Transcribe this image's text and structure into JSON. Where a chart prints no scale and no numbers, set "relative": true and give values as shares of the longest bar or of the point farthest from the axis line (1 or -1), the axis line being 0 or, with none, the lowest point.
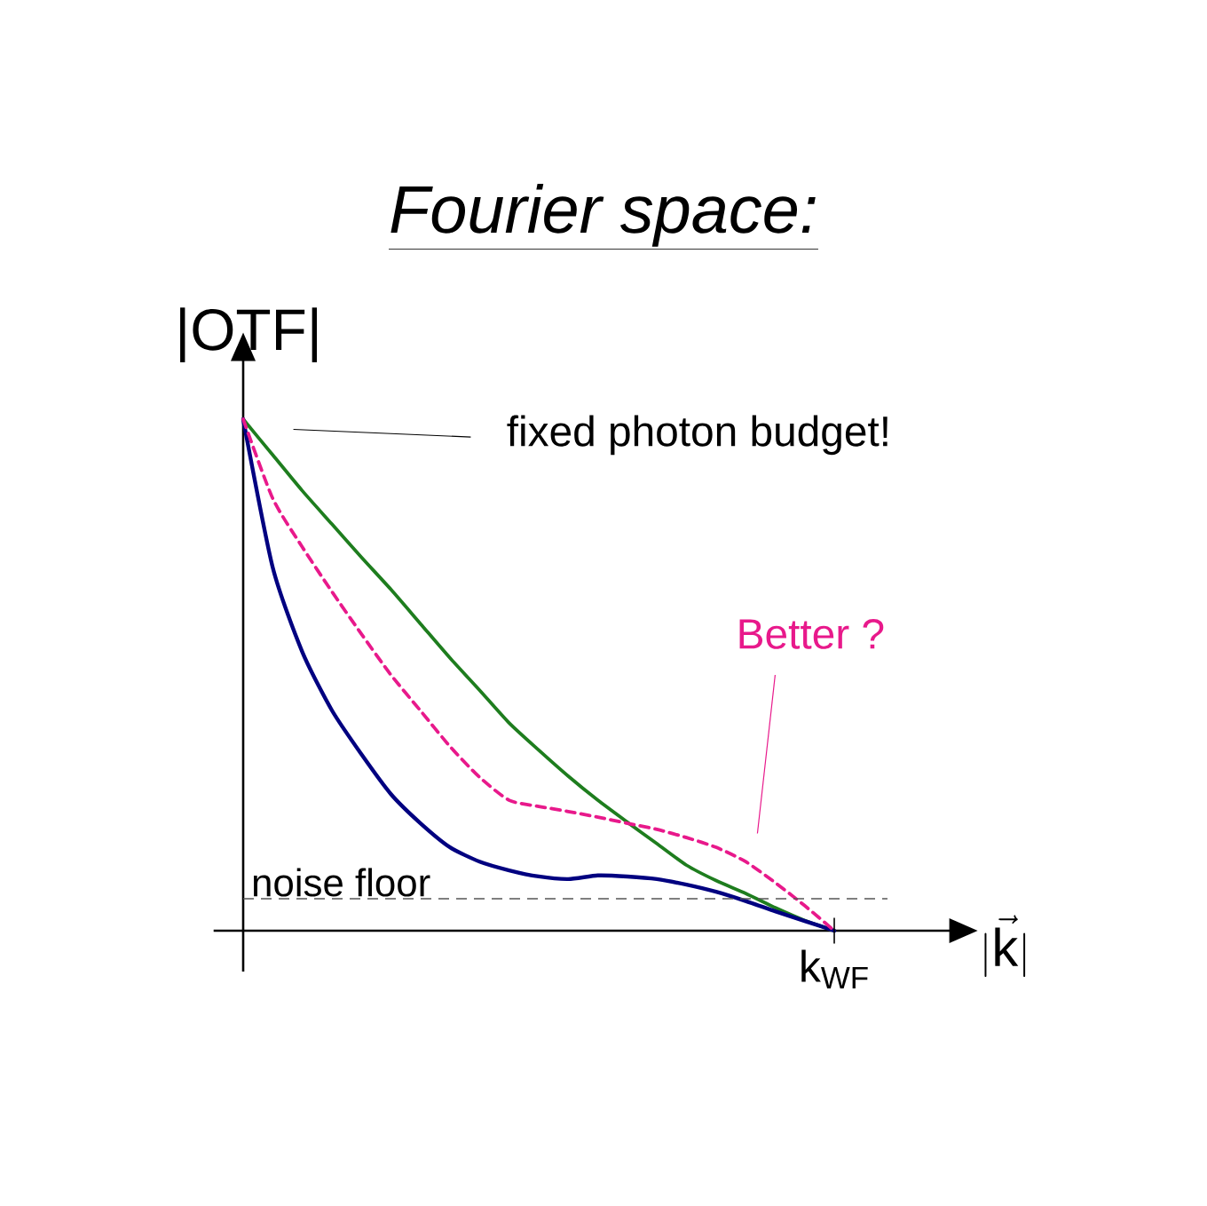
{
  "chart_data": {
    "type": "line",
    "title": "Fourier space:",
    "ylabel": "|OTF|",
    "relative": true,
    "marker": "none",
    "categories": [
      null,
      null,
      null,
      null,
      null,
      null,
      null,
      null,
      null,
      null,
      null,
      null,
      null,
      null,
      null,
      null,
      null,
      null,
      null,
      null,
      null
    ],
    "series": [
      {
        "color": "#1e7d1e",
        "line_style": "solid",
        "values": [
          1,
          0.93,
          0.86,
          0.795,
          0.73,
          0.667,
          0.6,
          0.533,
          0.47,
          0.406,
          0.353,
          0.302,
          0.255,
          0.212,
          0.17,
          0.128,
          0.098,
          0.073,
          0.045,
          0.02,
          0
        ]
      },
      {
        "color": "#000080",
        "line_style": "solid",
        "values": [
          1,
          0.71,
          0.545,
          0.431,
          0.345,
          0.267,
          0.21,
          0.163,
          0.135,
          0.118,
          0.106,
          0.101,
          0.108,
          0.106,
          0.101,
          0.09,
          0.076,
          0.058,
          0.038,
          0.019,
          0
        ]
      },
      {
        "color": "#e8198b",
        "line_style": "dashed",
        "values": [
          1,
          0.845,
          0.75,
          0.663,
          0.58,
          0.5,
          0.43,
          0.36,
          0.3,
          0.255,
          0.243,
          0.233,
          0.222,
          0.21,
          0.198,
          0.182,
          0.163,
          0.135,
          0.094,
          0.049,
          0
        ]
      }
    ],
    "ref_lines": [
      {
        "axis": "y",
        "value": 0.0625,
        "label": "noise floor",
        "color": "#555555",
        "line_style": "dashed"
      }
    ],
    "annotations": [
      "fixed photon budget!",
      "Better ?",
      "k$_{WF}$",
      "|\\vec{\\mathrm{k}}|"
    ]
  }
}
